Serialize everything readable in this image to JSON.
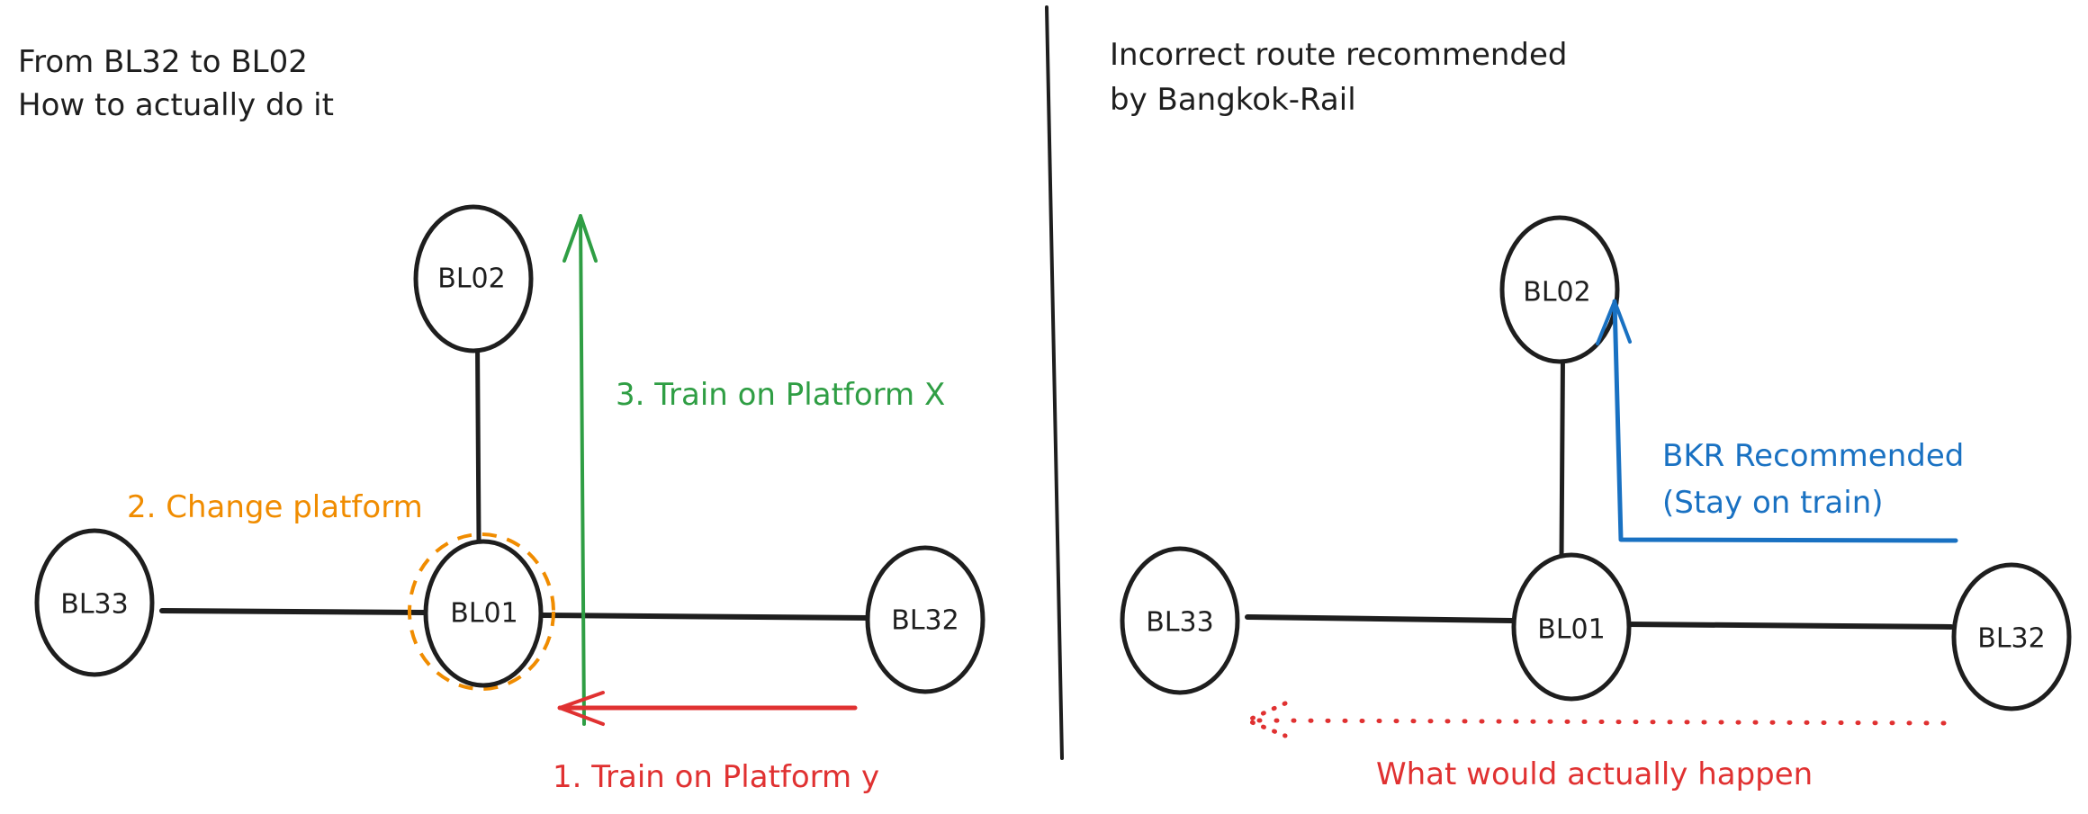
{
  "colors": {
    "ink": "#1e1e1e",
    "green": "#2f9e44",
    "orange": "#f08c00",
    "red": "#e03131",
    "blue": "#1971c2"
  },
  "left_panel": {
    "title_line1": "From BL32 to BL02",
    "title_line2": "How to actually do it",
    "nodes": {
      "top": "BL02",
      "left": "BL33",
      "center": "BL01",
      "right": "BL32"
    },
    "step1": "1. Train on Platform y",
    "step2": "2. Change platform",
    "step3": "3. Train on Platform X"
  },
  "right_panel": {
    "title_line1": "Incorrect route recommended",
    "title_line2": "by Bangkok-Rail",
    "nodes": {
      "top": "BL02",
      "left": "BL33",
      "center": "BL01",
      "right": "BL32"
    },
    "recommended_line1": "BKR Recommended",
    "recommended_line2": "(Stay on train)",
    "actual": "What would actually happen"
  }
}
